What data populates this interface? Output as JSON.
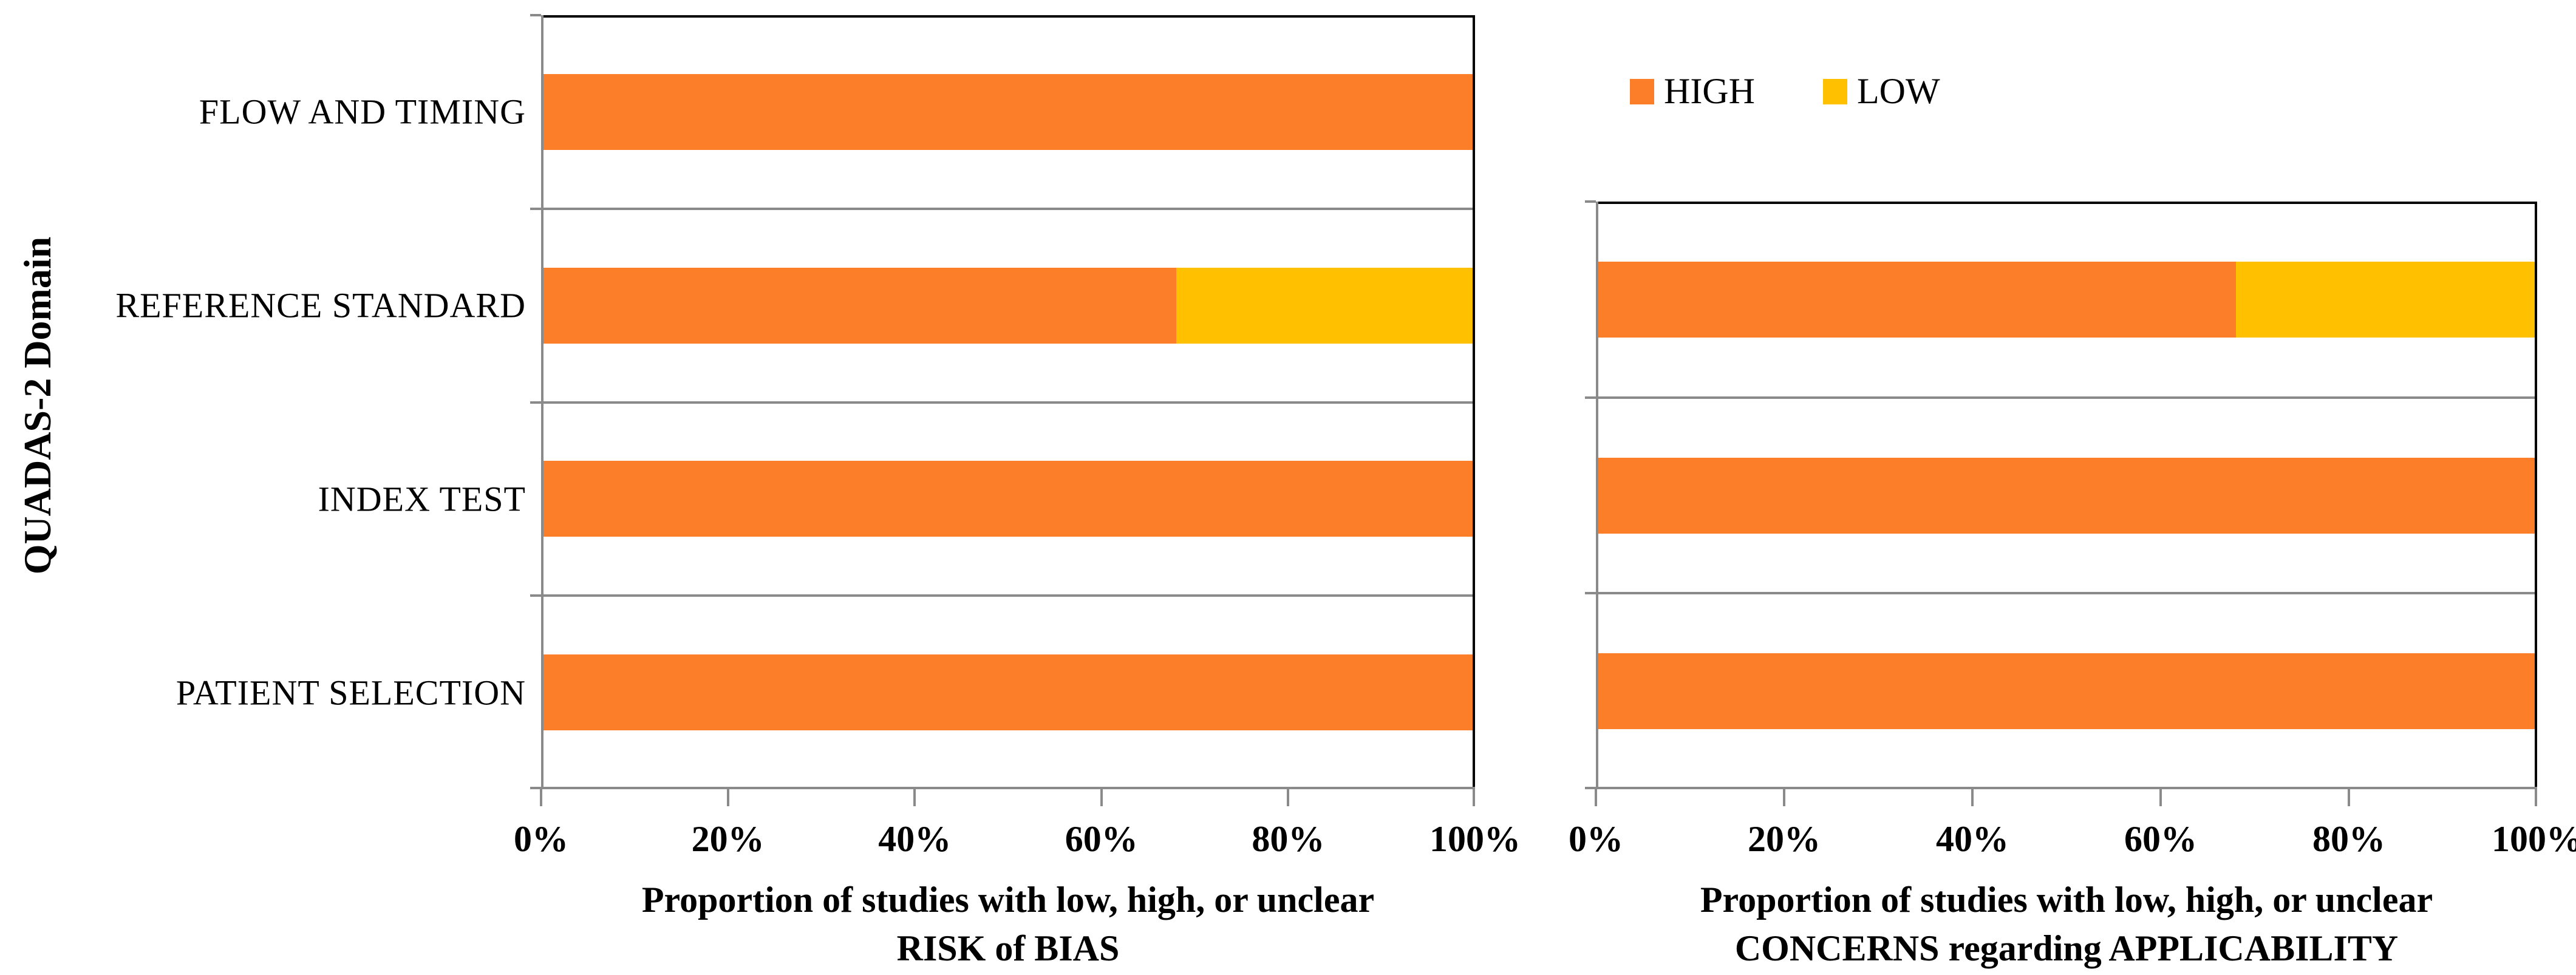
{
  "figure": {
    "y_axis_title": "QUADAS-2 Domain",
    "legend": {
      "items": [
        {
          "label": "HIGH",
          "color": "#FC7E28"
        },
        {
          "label": "LOW",
          "color": "#FFC000"
        }
      ]
    }
  },
  "chart_data": [
    {
      "type": "bar",
      "orientation": "horizontal",
      "stacked": true,
      "categories": [
        "FLOW AND TIMING",
        "REFERENCE STANDARD",
        "INDEX TEST",
        "PATIENT SELECTION"
      ],
      "series": [
        {
          "name": "HIGH",
          "color": "#FC7E28",
          "values": [
            100,
            68,
            100,
            100
          ]
        },
        {
          "name": "LOW",
          "color": "#FFC000",
          "values": [
            0,
            32,
            0,
            0
          ]
        }
      ],
      "x_tick_labels": [
        "0%",
        "20%",
        "40%",
        "60%",
        "80%",
        "100%"
      ],
      "xlim": [
        0,
        100
      ],
      "grid": "category-boundaries",
      "legend_position": "top-right",
      "xlabel_line1": "Proportion of studies with low, high, or unclear",
      "xlabel_line2": "RISK of BIAS",
      "show_category_labels": true
    },
    {
      "type": "bar",
      "orientation": "horizontal",
      "stacked": true,
      "categories": [
        "REFERENCE STANDARD",
        "INDEX TEST",
        "PATIENT SELECTION"
      ],
      "series": [
        {
          "name": "HIGH",
          "color": "#FC7E28",
          "values": [
            68,
            100,
            100
          ]
        },
        {
          "name": "LOW",
          "color": "#FFC000",
          "values": [
            32,
            0,
            0
          ]
        }
      ],
      "x_tick_labels": [
        "0%",
        "20%",
        "40%",
        "60%",
        "80%",
        "100%"
      ],
      "xlim": [
        0,
        100
      ],
      "grid": "category-boundaries",
      "legend_position": "shared",
      "xlabel_line1": "Proportion of studies with low, high, or unclear",
      "xlabel_line2": "CONCERNS regarding APPLICABILITY",
      "show_category_labels": false
    }
  ]
}
